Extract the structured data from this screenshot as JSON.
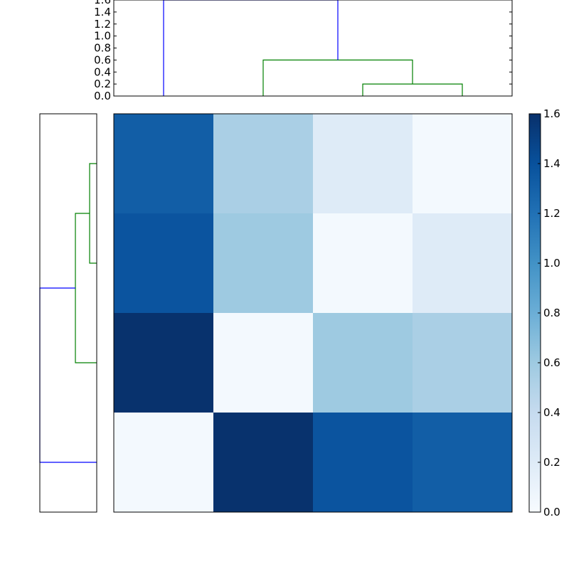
{
  "chart_data": {
    "type": "heatmap",
    "title": "",
    "xlabel": "",
    "ylabel": "",
    "matrix": [
      [
        1.32,
        0.54,
        0.2,
        0.03
      ],
      [
        1.38,
        0.6,
        0.03,
        0.2
      ],
      [
        1.59,
        0.03,
        0.6,
        0.54
      ],
      [
        0.03,
        1.59,
        1.38,
        1.32
      ]
    ],
    "colorscale": "Blues",
    "vmin": 0.0,
    "vmax": 1.6,
    "colorbar_ticks": [
      "0.0",
      "0.2",
      "0.4",
      "0.6",
      "0.8",
      "1.0",
      "1.2",
      "1.4",
      "1.6"
    ],
    "dendrogram_top": {
      "ylim": [
        0,
        1.6
      ],
      "ticks": [
        "0.0",
        "0.2",
        "0.4",
        "0.6",
        "0.8",
        "1.0",
        "1.2",
        "1.4",
        "1.6"
      ],
      "leaf_count": 4,
      "links": [
        {
          "left": 2,
          "right": 3,
          "height": 0.2,
          "color": "#008000"
        },
        {
          "left": 1,
          "right": 2.5,
          "height": 0.6,
          "color": "#008000"
        },
        {
          "left": 0,
          "right": 1.75,
          "height": 1.6,
          "color": "#0000ff"
        }
      ]
    },
    "dendrogram_left": {
      "xlim": [
        0,
        1.6
      ],
      "leaf_count": 4,
      "links": [
        {
          "low": 2,
          "high": 3,
          "height": 0.2,
          "color": "#008000"
        },
        {
          "low": 1,
          "high": 2.5,
          "height": 0.6,
          "color": "#008000"
        },
        {
          "low": 0,
          "high": 1.75,
          "height": 1.6,
          "color": "#0000ff"
        }
      ]
    }
  }
}
